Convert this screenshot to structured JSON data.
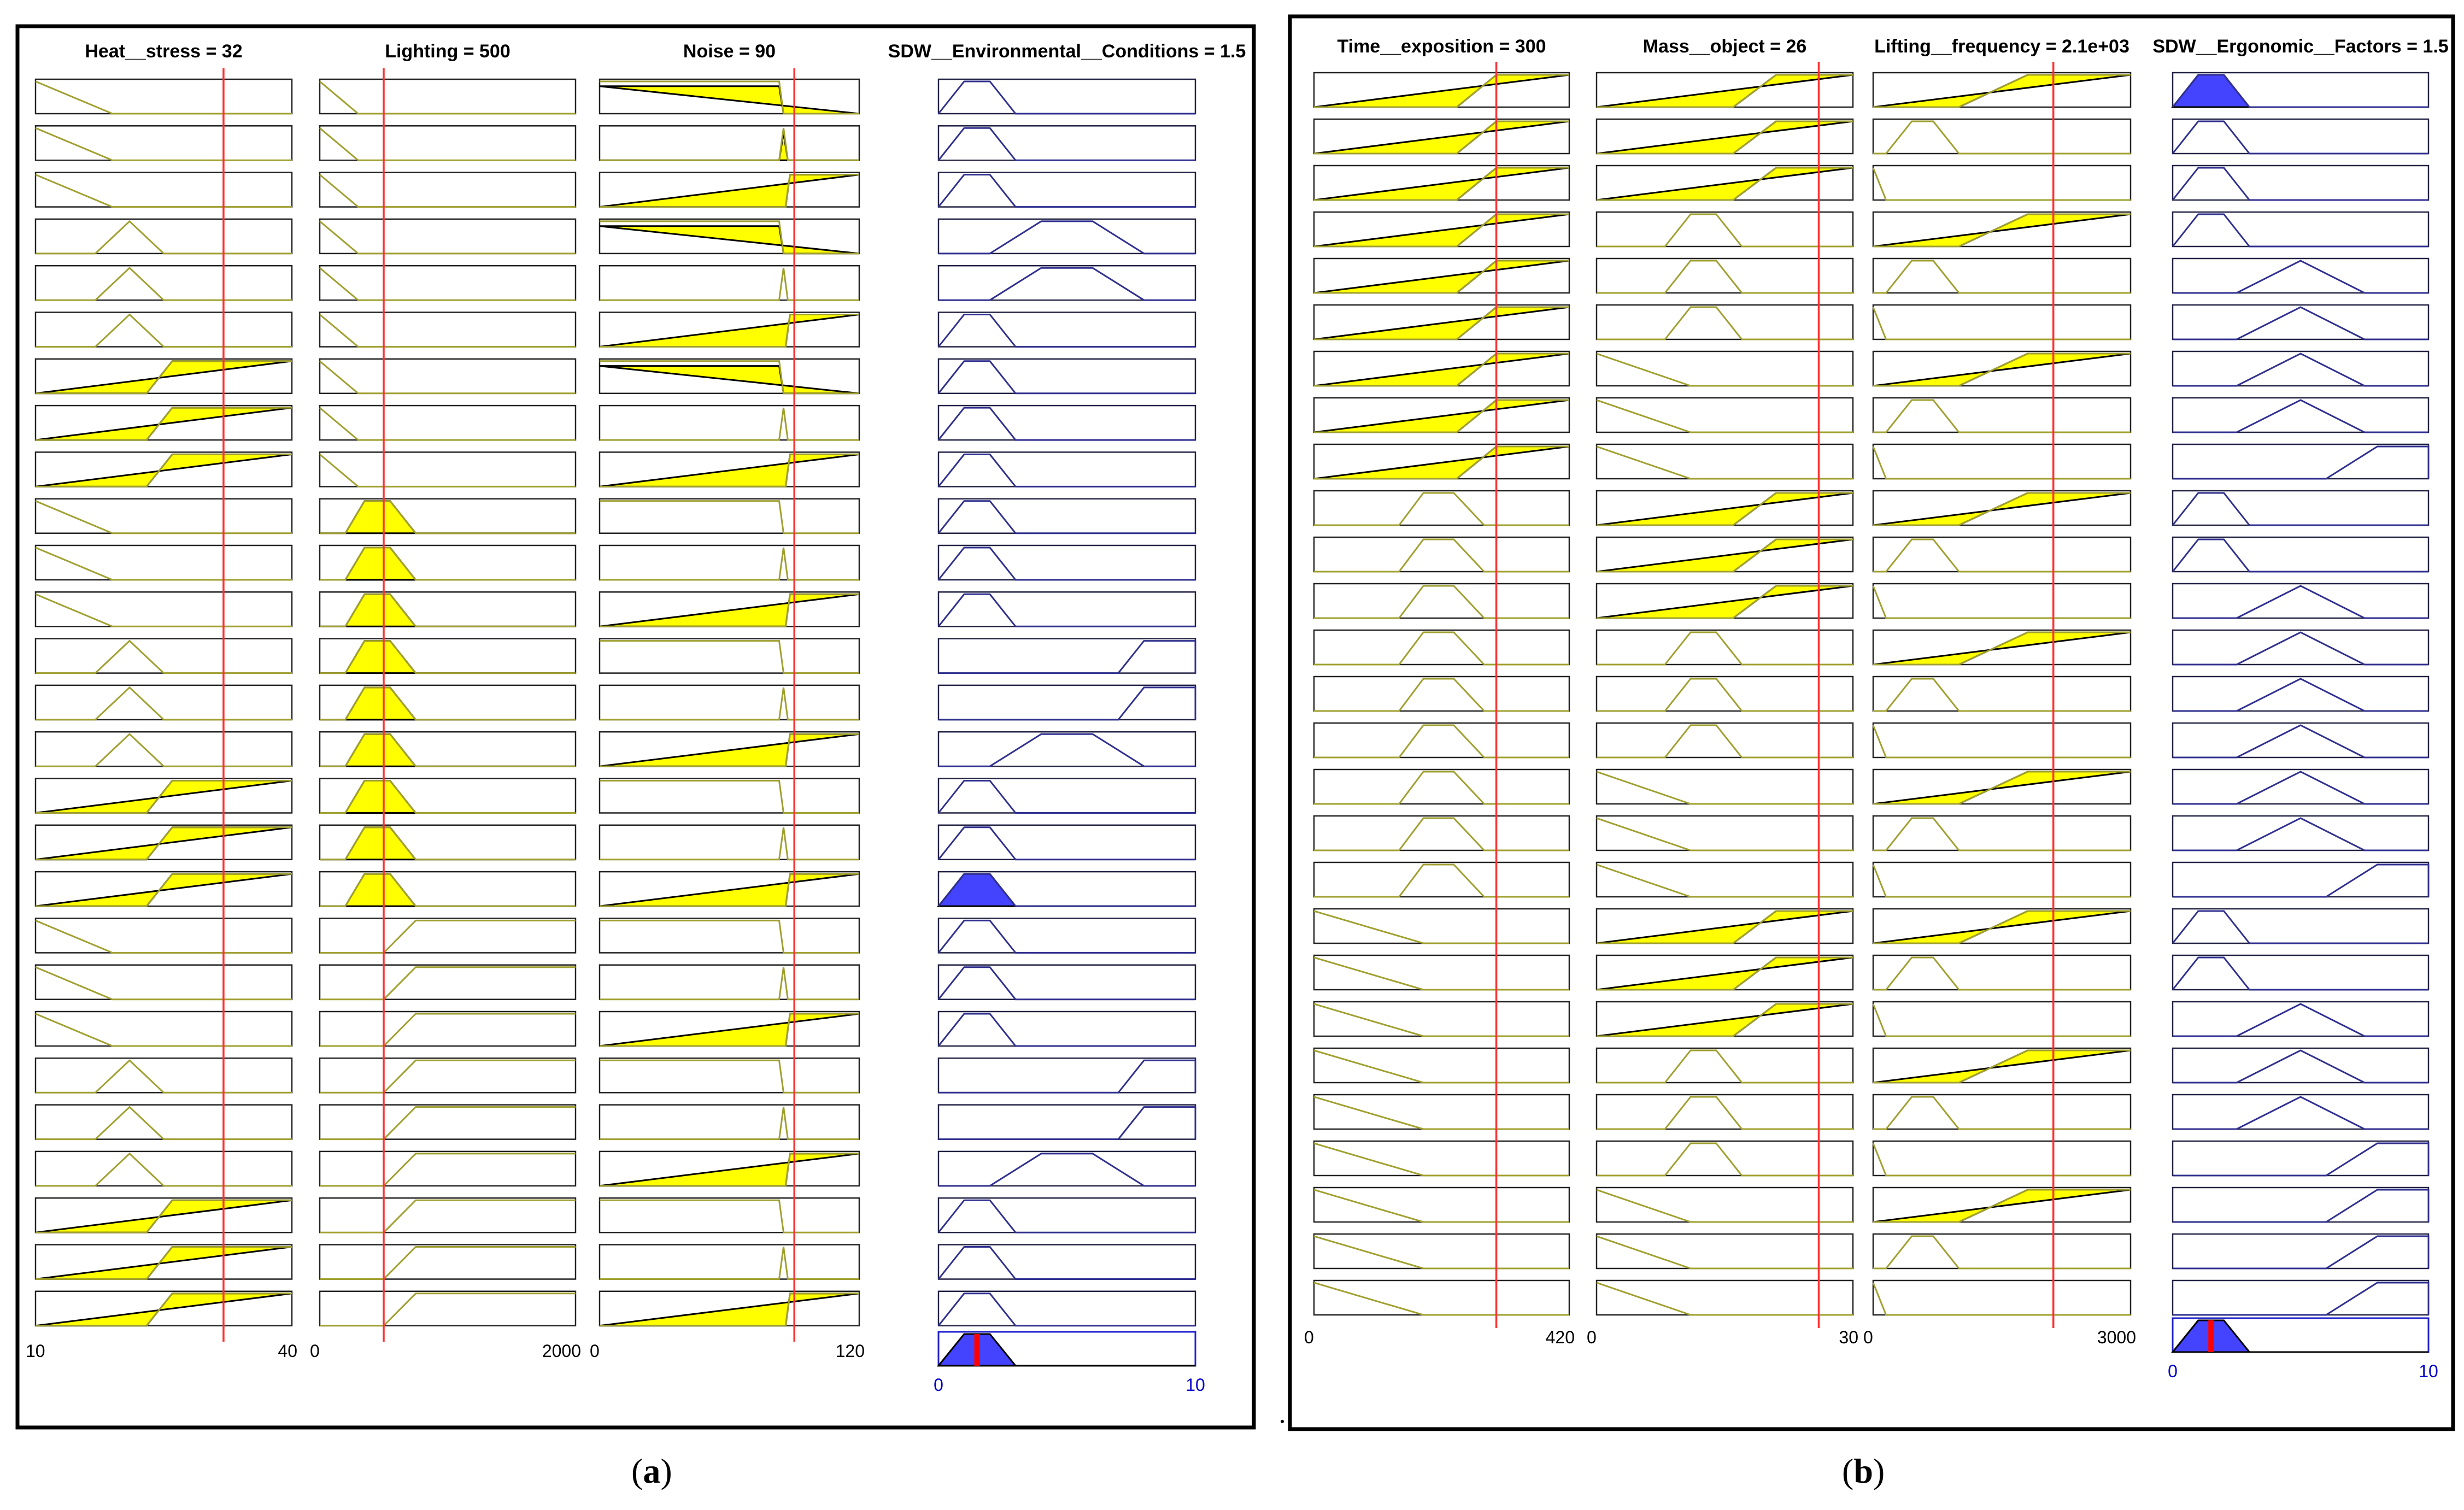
{
  "panels": [
    {
      "id": "a",
      "caption": "a",
      "inputs": [
        {
          "title": "Heat__stress = 32",
          "range_min": "10",
          "range_max": "40",
          "min": 10,
          "max": 40,
          "value": 32,
          "mfs": [
            {
              "type": "z",
              "p": [
                10,
                19
              ]
            },
            {
              "type": "tri",
              "p": [
                17,
                21,
                25
              ]
            },
            {
              "type": "s",
              "p": [
                23,
                26
              ]
            }
          ]
        },
        {
          "title": "Lighting = 500",
          "range_min": "0",
          "range_max": "2000",
          "min": 0,
          "max": 2000,
          "value": 500,
          "mfs": [
            {
              "type": "z",
              "p": [
                0,
                300
              ]
            },
            {
              "type": "trap",
              "p": [
                200,
                350,
                550,
                750
              ]
            },
            {
              "type": "s",
              "p": [
                500,
                750
              ]
            }
          ]
        },
        {
          "title": "Noise = 90",
          "range_min": "0",
          "range_max": "120",
          "min": 0,
          "max": 120,
          "value": 90,
          "mfs": [
            {
              "type": "z",
              "p": [
                83,
                85
              ]
            },
            {
              "type": "tri",
              "p": [
                83,
                85,
                87
              ]
            },
            {
              "type": "s",
              "p": [
                86,
                88
              ]
            }
          ]
        }
      ],
      "output": {
        "title": "SDW__Environmental__Conditions = 1.5",
        "range_min": "0",
        "range_max": "10",
        "min": 0,
        "max": 10,
        "value": 1.5,
        "mfs": [
          {
            "type": "trap",
            "p": [
              0,
              1,
              2,
              3
            ]
          },
          {
            "type": "trap",
            "p": [
              2,
              4,
              6,
              8
            ]
          },
          {
            "type": "trap",
            "p": [
              7,
              8,
              10,
              10
            ]
          }
        ]
      },
      "rules": [
        [
          1,
          1,
          1,
          1
        ],
        [
          1,
          1,
          2,
          1
        ],
        [
          1,
          1,
          3,
          1
        ],
        [
          2,
          1,
          1,
          2
        ],
        [
          2,
          1,
          2,
          2
        ],
        [
          2,
          1,
          3,
          1
        ],
        [
          3,
          1,
          1,
          1
        ],
        [
          3,
          1,
          2,
          1
        ],
        [
          3,
          1,
          3,
          1
        ],
        [
          1,
          2,
          1,
          1
        ],
        [
          1,
          2,
          2,
          1
        ],
        [
          1,
          2,
          3,
          1
        ],
        [
          2,
          2,
          1,
          3
        ],
        [
          2,
          2,
          2,
          3
        ],
        [
          2,
          2,
          3,
          2
        ],
        [
          3,
          2,
          1,
          1
        ],
        [
          3,
          2,
          2,
          1
        ],
        [
          3,
          2,
          3,
          1
        ],
        [
          1,
          3,
          1,
          1
        ],
        [
          1,
          3,
          2,
          1
        ],
        [
          1,
          3,
          3,
          1
        ],
        [
          2,
          3,
          1,
          3
        ],
        [
          2,
          3,
          2,
          3
        ],
        [
          2,
          3,
          3,
          2
        ],
        [
          3,
          3,
          1,
          1
        ],
        [
          3,
          3,
          2,
          1
        ],
        [
          3,
          3,
          3,
          1
        ]
      ],
      "firing": [
        {
          "inputs": [
            0,
            0,
            1
          ],
          "out": 0
        },
        {
          "inputs": [
            0,
            0,
            1
          ],
          "out": 0
        },
        {
          "inputs": [
            0,
            0,
            1
          ],
          "out": 0
        },
        {
          "inputs": [
            0,
            0,
            1
          ],
          "out": 0
        },
        {
          "inputs": [
            0,
            0,
            0
          ],
          "out": 0
        },
        {
          "inputs": [
            0,
            0,
            1
          ],
          "out": 0
        },
        {
          "inputs": [
            1,
            0,
            1
          ],
          "out": 0
        },
        {
          "inputs": [
            1,
            0,
            0
          ],
          "out": 0
        },
        {
          "inputs": [
            1,
            0,
            1
          ],
          "out": 0
        },
        {
          "inputs": [
            0,
            1,
            0
          ],
          "out": 0
        },
        {
          "inputs": [
            0,
            1,
            0
          ],
          "out": 0
        },
        {
          "inputs": [
            0,
            1,
            1
          ],
          "out": 0
        },
        {
          "inputs": [
            0,
            1,
            0
          ],
          "out": 0
        },
        {
          "inputs": [
            0,
            1,
            0
          ],
          "out": 0
        },
        {
          "inputs": [
            0,
            1,
            1
          ],
          "out": 0
        },
        {
          "inputs": [
            1,
            1,
            0
          ],
          "out": 0
        },
        {
          "inputs": [
            1,
            1,
            0
          ],
          "out": 0
        },
        {
          "inputs": [
            1,
            1,
            1
          ],
          "out": 1
        },
        {
          "inputs": [
            0,
            0,
            0
          ],
          "out": 0
        },
        {
          "inputs": [
            0,
            0,
            0
          ],
          "out": 0
        },
        {
          "inputs": [
            0,
            0,
            1
          ],
          "out": 0
        },
        {
          "inputs": [
            0,
            0,
            0
          ],
          "out": 0
        },
        {
          "inputs": [
            0,
            0,
            0
          ],
          "out": 0
        },
        {
          "inputs": [
            0,
            0,
            1
          ],
          "out": 0
        },
        {
          "inputs": [
            1,
            0,
            0
          ],
          "out": 0
        },
        {
          "inputs": [
            1,
            0,
            0
          ],
          "out": 0
        },
        {
          "inputs": [
            1,
            0,
            1
          ],
          "out": 0
        }
      ]
    },
    {
      "id": "b",
      "caption": "b",
      "inputs": [
        {
          "title": "Time__exposition = 300",
          "range_min": "0",
          "range_max": "420",
          "min": 0,
          "max": 420,
          "value": 300,
          "mfs": [
            {
              "type": "z",
              "p": [
                0,
                180
              ]
            },
            {
              "type": "trap",
              "p": [
                140,
                180,
                230,
                280
              ]
            },
            {
              "type": "s",
              "p": [
                235,
                300
              ]
            }
          ]
        },
        {
          "title": "Mass__object = 26",
          "range_min": "0",
          "range_max": "30",
          "min": 0,
          "max": 30,
          "value": 26,
          "mfs": [
            {
              "type": "z",
              "p": [
                0,
                11
              ]
            },
            {
              "type": "trap",
              "p": [
                8,
                11,
                14,
                17
              ]
            },
            {
              "type": "s",
              "p": [
                16,
                21
              ]
            }
          ]
        },
        {
          "title": "Lifting__frequency = 2.1e+03",
          "range_min": "0",
          "range_max": "3000",
          "min": 0,
          "max": 3000,
          "value": 2100,
          "mfs": [
            {
              "type": "z",
              "p": [
                0,
                150
              ]
            },
            {
              "type": "trap",
              "p": [
                150,
                450,
                700,
                1000
              ]
            },
            {
              "type": "s",
              "p": [
                1000,
                1800
              ]
            }
          ]
        }
      ],
      "output": {
        "title": "SDW__Ergonomic__Factors = 1.5",
        "range_min": "0",
        "range_max": "10",
        "min": 0,
        "max": 10,
        "value": 1.5,
        "mfs": [
          {
            "type": "trap",
            "p": [
              0,
              1,
              2,
              3
            ]
          },
          {
            "type": "tri",
            "p": [
              2.5,
              5,
              7.5
            ]
          },
          {
            "type": "trap",
            "p": [
              6,
              8,
              10,
              10
            ]
          }
        ]
      },
      "rules": [
        [
          3,
          3,
          3,
          1
        ],
        [
          3,
          3,
          2,
          1
        ],
        [
          3,
          3,
          1,
          1
        ],
        [
          3,
          2,
          3,
          1
        ],
        [
          3,
          2,
          2,
          2
        ],
        [
          3,
          2,
          1,
          2
        ],
        [
          3,
          1,
          3,
          2
        ],
        [
          3,
          1,
          2,
          2
        ],
        [
          3,
          1,
          1,
          3
        ],
        [
          2,
          3,
          3,
          1
        ],
        [
          2,
          3,
          2,
          1
        ],
        [
          2,
          3,
          1,
          2
        ],
        [
          2,
          2,
          3,
          2
        ],
        [
          2,
          2,
          2,
          2
        ],
        [
          2,
          2,
          1,
          2
        ],
        [
          2,
          1,
          3,
          2
        ],
        [
          2,
          1,
          2,
          2
        ],
        [
          2,
          1,
          1,
          3
        ],
        [
          1,
          3,
          3,
          1
        ],
        [
          1,
          3,
          2,
          1
        ],
        [
          1,
          3,
          1,
          2
        ],
        [
          1,
          2,
          3,
          2
        ],
        [
          1,
          2,
          2,
          2
        ],
        [
          1,
          2,
          1,
          3
        ],
        [
          1,
          1,
          3,
          3
        ],
        [
          1,
          1,
          2,
          3
        ],
        [
          1,
          1,
          1,
          3
        ]
      ],
      "firing": [
        {
          "inputs": [
            1,
            1,
            1
          ],
          "out": 1
        },
        {
          "inputs": [
            1,
            1,
            0
          ],
          "out": 0
        },
        {
          "inputs": [
            1,
            1,
            0
          ],
          "out": 0
        },
        {
          "inputs": [
            1,
            0,
            1
          ],
          "out": 0
        },
        {
          "inputs": [
            1,
            0,
            0
          ],
          "out": 0
        },
        {
          "inputs": [
            1,
            0,
            0
          ],
          "out": 0
        },
        {
          "inputs": [
            1,
            0,
            1
          ],
          "out": 0
        },
        {
          "inputs": [
            1,
            0,
            0
          ],
          "out": 0
        },
        {
          "inputs": [
            1,
            0,
            0
          ],
          "out": 0
        },
        {
          "inputs": [
            0,
            1,
            1
          ],
          "out": 0
        },
        {
          "inputs": [
            0,
            1,
            0
          ],
          "out": 0
        },
        {
          "inputs": [
            0,
            1,
            0
          ],
          "out": 0
        },
        {
          "inputs": [
            0,
            0,
            1
          ],
          "out": 0
        },
        {
          "inputs": [
            0,
            0,
            0
          ],
          "out": 0
        },
        {
          "inputs": [
            0,
            0,
            0
          ],
          "out": 0
        },
        {
          "inputs": [
            0,
            0,
            1
          ],
          "out": 0
        },
        {
          "inputs": [
            0,
            0,
            0
          ],
          "out": 0
        },
        {
          "inputs": [
            0,
            0,
            0
          ],
          "out": 0
        },
        {
          "inputs": [
            0,
            1,
            1
          ],
          "out": 0
        },
        {
          "inputs": [
            0,
            1,
            0
          ],
          "out": 0
        },
        {
          "inputs": [
            0,
            1,
            0
          ],
          "out": 0
        },
        {
          "inputs": [
            0,
            0,
            1
          ],
          "out": 0
        },
        {
          "inputs": [
            0,
            0,
            0
          ],
          "out": 0
        },
        {
          "inputs": [
            0,
            0,
            0
          ],
          "out": 0
        },
        {
          "inputs": [
            0,
            0,
            1
          ],
          "out": 0
        },
        {
          "inputs": [
            0,
            0,
            0
          ],
          "out": 0
        },
        {
          "inputs": [
            0,
            0,
            0
          ],
          "out": 0
        }
      ]
    }
  ],
  "colors": {
    "input_fill": "#ffff00",
    "input_line": "#a0a030",
    "output_fill": "#4444ff",
    "output_line": "#303090",
    "value_line": "#ff3030",
    "result_marker": "#ff0000",
    "frame": "#000000",
    "output_axis_text": "#0000cc"
  }
}
